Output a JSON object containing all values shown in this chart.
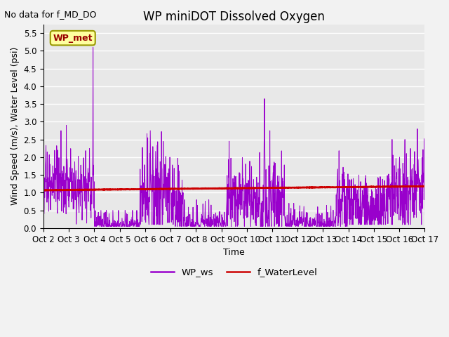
{
  "title": "WP miniDOT Dissolved Oxygen",
  "xlabel": "Time",
  "ylabel": "Wind Speed (m/s), Water Level (psi)",
  "ylim": [
    0.0,
    5.75
  ],
  "yticks": [
    0.0,
    0.5,
    1.0,
    1.5,
    2.0,
    2.5,
    3.0,
    3.5,
    4.0,
    4.5,
    5.0,
    5.5
  ],
  "annotation_text": "No data for f_MD_DO",
  "box_text": "WP_met",
  "box_facecolor": "#FFFFA0",
  "box_edgecolor": "#999900",
  "box_textcolor": "#990000",
  "line_ws_color": "#9900CC",
  "line_wl_color": "#CC0000",
  "legend_labels": [
    "WP_ws",
    "f_WaterLevel"
  ],
  "background_color": "#E8E8E8",
  "fig_background": "#F2F2F2",
  "title_fontsize": 12,
  "axis_fontsize": 9,
  "tick_fontsize": 8.5,
  "n_points": 1500
}
